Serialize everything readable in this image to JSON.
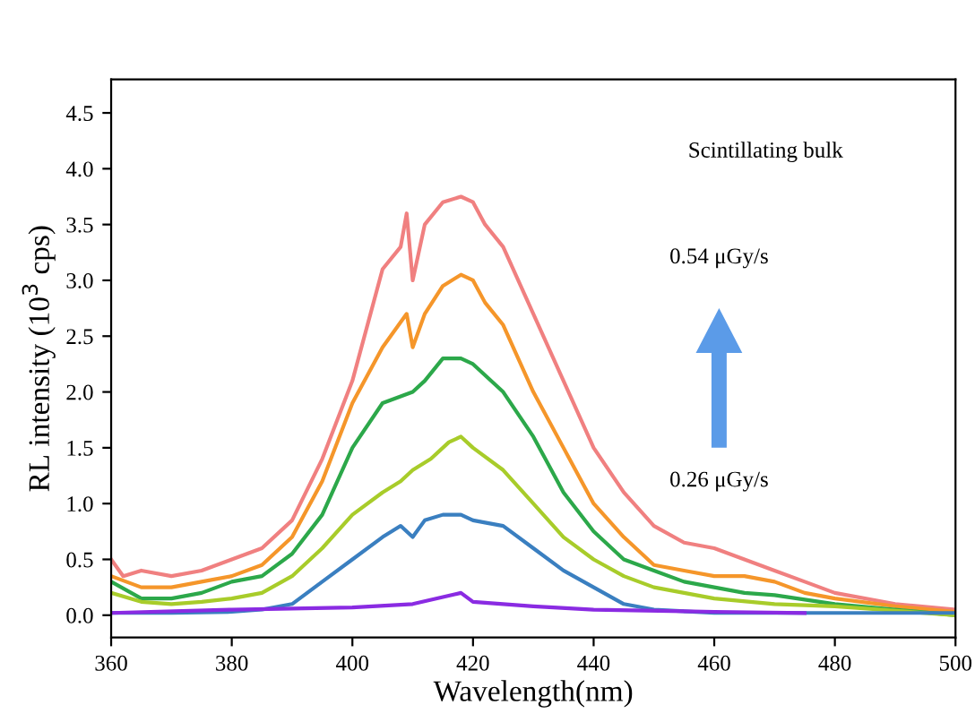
{
  "chart_data": {
    "type": "line",
    "xlabel": "Wavelength(nm)",
    "ylabel": "RL intensity (10$^{3}$ cps)",
    "xlim": [
      360,
      500
    ],
    "xticks": [
      360,
      380,
      400,
      420,
      440,
      460,
      480,
      500
    ],
    "ylim": [
      -0.2,
      4.8
    ],
    "yticks": [
      {
        "value": 0,
        "label": "0.0"
      },
      {
        "value": 0.5,
        "label": "0.5"
      },
      {
        "value": 1,
        "label": "1.0"
      },
      {
        "value": 1.5,
        "label": "1.5"
      },
      {
        "value": 2,
        "label": "2.0"
      },
      {
        "value": 2.5,
        "label": "2.5"
      },
      {
        "value": 3,
        "label": "3.0"
      },
      {
        "value": 3.5,
        "label": "3.5"
      },
      {
        "value": 4,
        "label": "4.0"
      },
      {
        "value": 4.5,
        "label": "4.5"
      }
    ],
    "grid": false,
    "legend": false,
    "annotations": [
      "Scintillating bulk",
      "0.54 μGy/s",
      "0.26 μGy/s"
    ],
    "series": [
      {
        "color": "#f08080",
        "x": [
          360,
          362,
          365,
          370,
          375,
          380,
          385,
          390,
          395,
          400,
          403,
          405,
          408,
          409,
          410,
          412,
          415,
          418,
          420,
          422,
          425,
          430,
          435,
          440,
          445,
          450,
          455,
          460,
          465,
          470,
          475,
          480,
          490,
          500
        ],
        "values": [
          0.5,
          0.35,
          0.4,
          0.35,
          0.4,
          0.5,
          0.6,
          0.85,
          1.4,
          2.1,
          2.7,
          3.1,
          3.3,
          3.6,
          3.0,
          3.5,
          3.7,
          3.75,
          3.7,
          3.5,
          3.3,
          2.7,
          2.1,
          1.5,
          1.1,
          0.8,
          0.65,
          0.6,
          0.5,
          0.4,
          0.3,
          0.2,
          0.1,
          0.05
        ]
      },
      {
        "color": "#f5962a",
        "x": [
          360,
          365,
          370,
          375,
          380,
          385,
          390,
          395,
          400,
          405,
          409,
          410,
          412,
          415,
          418,
          420,
          422,
          425,
          430,
          435,
          440,
          445,
          450,
          455,
          460,
          465,
          470,
          475,
          480,
          490,
          500
        ],
        "values": [
          0.35,
          0.25,
          0.25,
          0.3,
          0.35,
          0.45,
          0.7,
          1.2,
          1.9,
          2.4,
          2.7,
          2.4,
          2.7,
          2.95,
          3.05,
          3.0,
          2.8,
          2.6,
          2.0,
          1.5,
          1.0,
          0.7,
          0.45,
          0.4,
          0.35,
          0.35,
          0.3,
          0.2,
          0.15,
          0.08,
          0.03
        ]
      },
      {
        "color": "#2ca84a",
        "x": [
          360,
          365,
          370,
          375,
          380,
          385,
          390,
          395,
          400,
          405,
          410,
          412,
          415,
          418,
          420,
          425,
          430,
          435,
          440,
          445,
          450,
          455,
          460,
          465,
          470,
          480,
          490,
          500
        ],
        "values": [
          0.3,
          0.15,
          0.15,
          0.2,
          0.3,
          0.35,
          0.55,
          0.9,
          1.5,
          1.9,
          2.0,
          2.1,
          2.3,
          2.3,
          2.25,
          2.0,
          1.6,
          1.1,
          0.75,
          0.5,
          0.4,
          0.3,
          0.25,
          0.2,
          0.18,
          0.1,
          0.05,
          0.0
        ]
      },
      {
        "color": "#a8cc2a",
        "x": [
          360,
          365,
          370,
          375,
          380,
          385,
          390,
          395,
          400,
          405,
          408,
          410,
          413,
          416,
          418,
          420,
          425,
          430,
          435,
          440,
          445,
          450,
          455,
          460,
          470,
          480,
          490,
          500
        ],
        "values": [
          0.2,
          0.12,
          0.1,
          0.12,
          0.15,
          0.2,
          0.35,
          0.6,
          0.9,
          1.1,
          1.2,
          1.3,
          1.4,
          1.55,
          1.6,
          1.5,
          1.3,
          1.0,
          0.7,
          0.5,
          0.35,
          0.25,
          0.2,
          0.15,
          0.1,
          0.08,
          0.04,
          0.0
        ]
      },
      {
        "color": "#3a7fc0",
        "x": [
          360,
          370,
          380,
          385,
          390,
          395,
          400,
          405,
          408,
          410,
          412,
          415,
          418,
          420,
          425,
          430,
          435,
          440,
          445,
          450,
          460,
          480,
          500
        ],
        "values": [
          0.02,
          0.02,
          0.03,
          0.05,
          0.1,
          0.3,
          0.5,
          0.7,
          0.8,
          0.7,
          0.85,
          0.9,
          0.9,
          0.85,
          0.8,
          0.6,
          0.4,
          0.25,
          0.1,
          0.05,
          0.02,
          0.02,
          0.02
        ]
      },
      {
        "color": "#8a2be2",
        "x": [
          360,
          380,
          400,
          410,
          418,
          420,
          430,
          440,
          460,
          475
        ],
        "values": [
          0.02,
          0.05,
          0.07,
          0.1,
          0.2,
          0.12,
          0.08,
          0.05,
          0.03,
          0.02
        ]
      }
    ]
  }
}
